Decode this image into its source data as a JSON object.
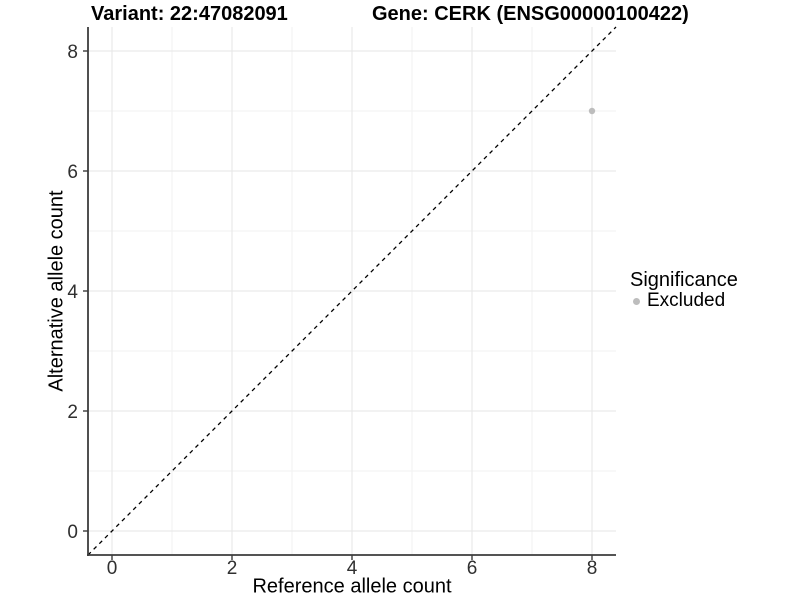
{
  "titles": {
    "variant": "Variant: 22:47082091",
    "gene": "Gene: CERK (ENSG00000100422)"
  },
  "axes": {
    "x": {
      "label": "Reference allele count",
      "tick_labels": [
        "0",
        "2",
        "4",
        "6",
        "8"
      ]
    },
    "y": {
      "label": "Alternative allele count",
      "tick_labels": [
        "0",
        "2",
        "4",
        "6",
        "8"
      ]
    }
  },
  "legend": {
    "title": "Significance",
    "items": [
      {
        "label": "Excluded",
        "color": "#bdbdbd"
      }
    ]
  },
  "chart_data": {
    "type": "scatter",
    "title": "Variant: 22:47082091   Gene: CERK (ENSG00000100422)",
    "xlabel": "Reference allele count",
    "ylabel": "Alternative allele count",
    "xlim": [
      -0.4,
      8.4
    ],
    "ylim": [
      -0.4,
      8.4
    ],
    "xticks": [
      0,
      2,
      4,
      6,
      8
    ],
    "yticks": [
      0,
      2,
      4,
      6,
      8
    ],
    "minor_ticks": [
      1,
      3,
      5,
      7
    ],
    "grid": "major and minor, light gray on white panel",
    "legend_position": "right",
    "series": [
      {
        "name": "Excluded",
        "color": "#bdbdbd",
        "points": [
          {
            "x": 8,
            "y": 7
          }
        ]
      }
    ],
    "reference_line": {
      "description": "identity line y = x",
      "from": [
        -0.4,
        -0.4
      ],
      "to": [
        8.4,
        8.4
      ],
      "style": "dashed",
      "color": "#000000"
    }
  },
  "colors": {
    "background": "#ffffff",
    "grid_major": "#e5e5e5",
    "grid_minor": "#f2f2f2",
    "axis_line": "#3c3c3c",
    "tick_text": "#303030",
    "dashed_line": "#000000",
    "point": "#bdbdbd"
  }
}
